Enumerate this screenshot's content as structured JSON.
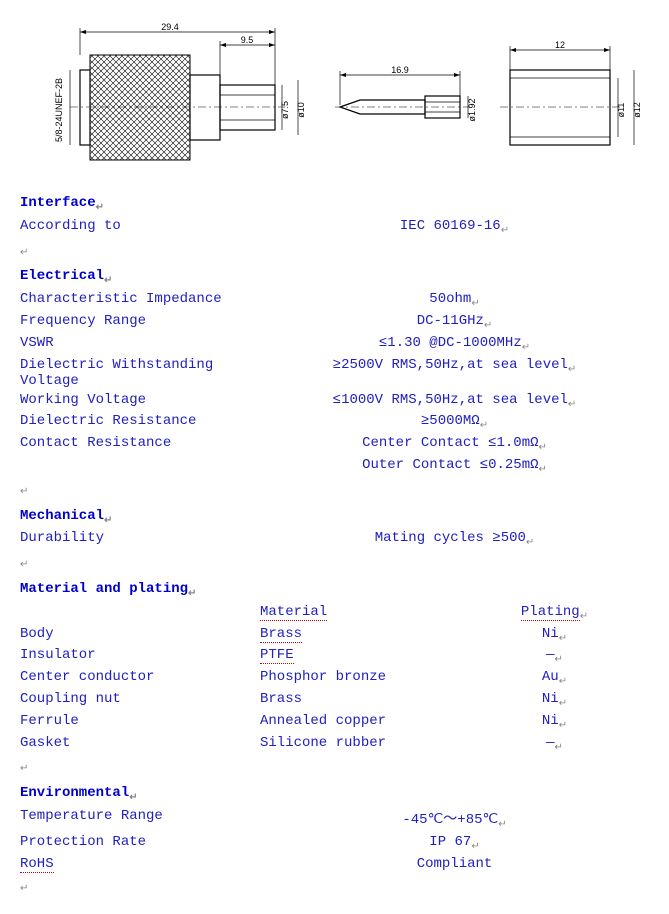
{
  "diagram": {
    "dims": {
      "overall_len": "29.4",
      "tip_len": "9.5",
      "thread": "5/8-24UNEF-2B",
      "d1": "ø7.5",
      "d2": "ø10",
      "pin_len": "16.9",
      "pin_d": "ø1.92",
      "sleeve_len": "12",
      "sleeve_d1": "ø11",
      "sleeve_d2": "ø12"
    }
  },
  "interface": {
    "header": "Interface",
    "according_label": "According to",
    "according_value": "IEC 60169-16"
  },
  "electrical": {
    "header": "Electrical",
    "impedance_label": "Characteristic Impedance",
    "impedance_value": "50ohm",
    "freq_label": "Frequency Range",
    "freq_value": "DC-11GHz",
    "vswr_label": "VSWR",
    "vswr_value": "≤1.30 @DC-1000MHz",
    "dwv_label": "Dielectric Withstanding Voltage",
    "dwv_value": "≥2500V RMS,50Hz,at sea level",
    "wv_label": "Working Voltage",
    "wv_value": "≤1000V RMS,50Hz,at sea level",
    "dr_label": "Dielectric Resistance",
    "dr_value": "≥5000MΩ",
    "cr_label": "Contact Resistance",
    "cr_value1": "Center Contact ≤1.0mΩ",
    "cr_value2": "Outer Contact ≤0.25mΩ"
  },
  "mechanical": {
    "header": "Mechanical",
    "dur_label": "Durability",
    "dur_value": "Mating cycles ≥500"
  },
  "material": {
    "header": "Material and plating",
    "col_material": "Material",
    "col_plating": "Plating",
    "rows": [
      {
        "name": "Body",
        "material": "Brass",
        "plating": "Ni",
        "ul": true
      },
      {
        "name": "Insulator",
        "material": "PTFE",
        "plating": "—",
        "ul": true
      },
      {
        "name": "Center conductor",
        "material": "Phosphor bronze",
        "plating": "Au",
        "ul": false
      },
      {
        "name": "Coupling nut",
        "material": "Brass",
        "plating": "Ni",
        "ul": false
      },
      {
        "name": "Ferrule",
        "material": "Annealed copper",
        "plating": "Ni",
        "ul": false
      },
      {
        "name": "Gasket",
        "material": "Silicone rubber",
        "plating": "—",
        "ul": false
      }
    ]
  },
  "environmental": {
    "header": "Environmental",
    "temp_label": "Temperature Range",
    "temp_value": "-45℃～+85℃",
    "prot_label": "Protection Rate",
    "prot_value": "IP 67",
    "rohs_label": "RoHS",
    "rohs_value": "Compliant"
  },
  "marker": "↵"
}
